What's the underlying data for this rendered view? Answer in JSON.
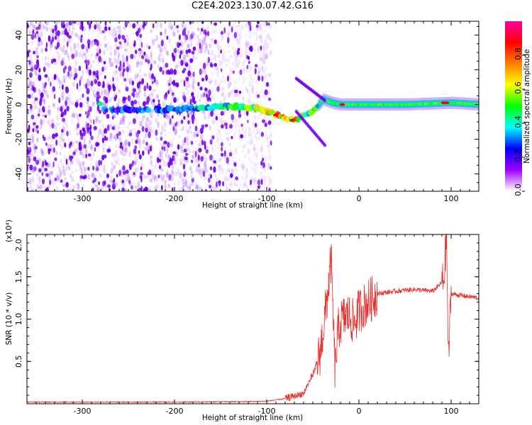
{
  "title": "C2E4.2023.130.07.42.G16",
  "colors": {
    "snr_line": "#e8302c",
    "spectrogram_scatter": "#7a00ff",
    "colormap": [
      "#ffffff",
      "#a000ff",
      "#0000ff",
      "#00ffff",
      "#00ff00",
      "#ffff00",
      "#ff8000",
      "#ff0000",
      "#ff00a0"
    ]
  },
  "chart_data": [
    {
      "type": "heatmap",
      "title": "C2E4.2023.130.07.42.G16",
      "xlabel": "Height of straight line (km)",
      "ylabel": "Frequency (Hz)",
      "xlim": [
        -360,
        130
      ],
      "ylim": [
        -50,
        48
      ],
      "x_ticks": [
        "-300",
        "-200",
        "-100",
        "0",
        "100"
      ],
      "y_ticks": [
        "-40",
        "-20",
        "0",
        "20",
        "40"
      ],
      "colorbar": {
        "label": "Normalized spectral amplitude",
        "range": [
          0.0,
          1.0
        ],
        "ticks": [
          "0.0",
          "0.2",
          "0.4",
          "0.6",
          "0.8"
        ]
      },
      "band": {
        "description_x": [
          -280,
          -200,
          -150,
          -110,
          -90,
          -70,
          -50,
          -40,
          -30,
          -20,
          0,
          50,
          100,
          130
        ],
        "center_frequency_hz": [
          -3,
          -3,
          -1,
          -2,
          -6,
          -9,
          -4,
          3,
          1,
          0,
          0,
          0,
          1,
          0
        ],
        "amplitude": [
          0.3,
          0.35,
          0.45,
          0.6,
          0.85,
          0.8,
          0.5,
          0.5,
          0.55,
          0.6,
          0.45,
          0.45,
          0.5,
          0.45
        ]
      }
    },
    {
      "type": "line",
      "xlabel": "Height of straight line (km)",
      "ylabel": "SNR (10 * v/v)",
      "y_multiplier": "(x10⁴)",
      "xlim": [
        -360,
        130
      ],
      "ylim": [
        0,
        2.0
      ],
      "x_ticks": [
        "-300",
        "-200",
        "-100",
        "0",
        "100"
      ],
      "y_ticks": [
        "0.5",
        "1.0",
        "1.5",
        "2.0"
      ],
      "series": [
        {
          "x": [
            -360,
            -300,
            -200,
            -120,
            -100,
            -80,
            -60,
            -50,
            -42,
            -36,
            -30,
            -26,
            -22,
            -18,
            -12,
            -5,
            0,
            10,
            20,
            40,
            60,
            80,
            92,
            95,
            97,
            100,
            110,
            130
          ],
          "y": [
            0.02,
            0.02,
            0.02,
            0.025,
            0.03,
            0.06,
            0.12,
            0.35,
            0.6,
            1.1,
            1.7,
            0.4,
            0.9,
            1.0,
            1.05,
            0.95,
            1.1,
            1.2,
            1.3,
            1.33,
            1.35,
            1.33,
            1.45,
            2.0,
            0.5,
            1.3,
            1.28,
            1.25
          ]
        }
      ]
    }
  ]
}
